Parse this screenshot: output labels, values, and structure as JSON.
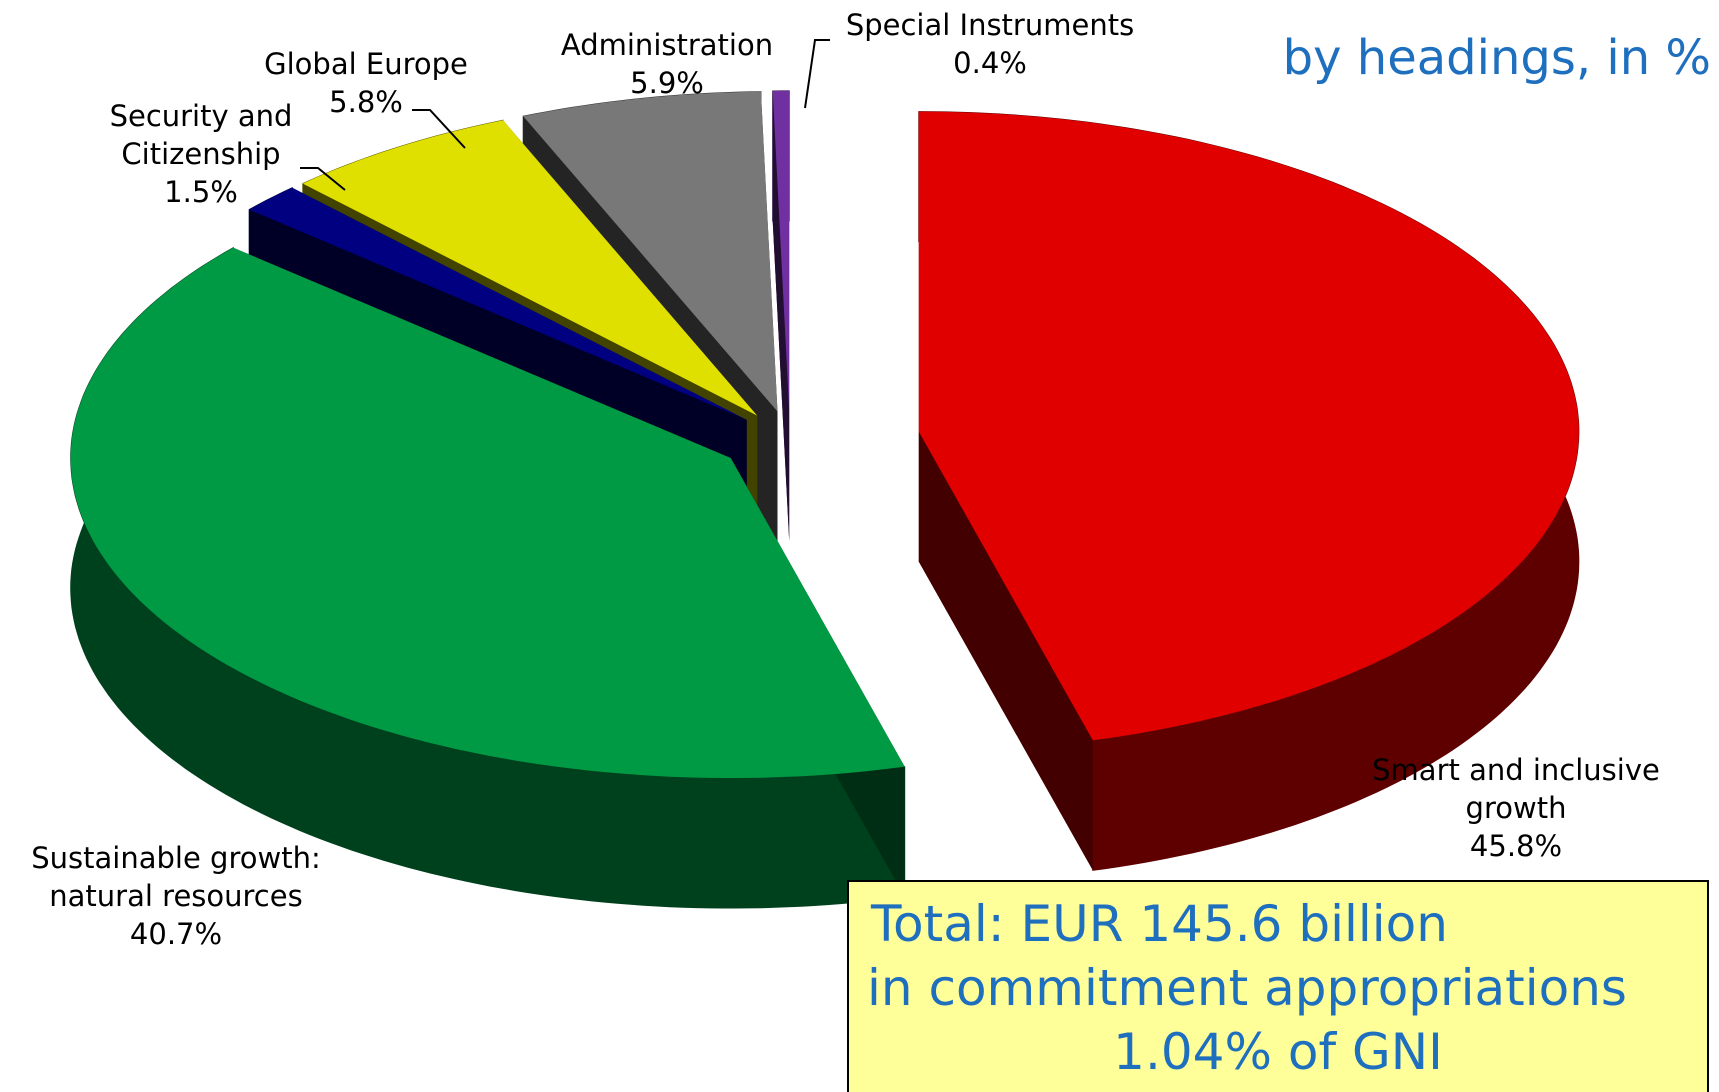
{
  "chart_data": {
    "type": "pie",
    "title": "by headings, in %",
    "categories": [
      "Smart and inclusive growth",
      "Sustainable growth: natural resources",
      "Security and Citizenship",
      "Global Europe",
      "Administration",
      "Special Instruments"
    ],
    "values": [
      45.8,
      40.7,
      1.5,
      5.8,
      5.9,
      0.4
    ],
    "value_labels": [
      "45.8%",
      "40.7%",
      "1.5%",
      "5.8%",
      "5.9%",
      "0.4%"
    ],
    "colors": [
      "#e00000",
      "#009a44",
      "#000080",
      "#e0e000",
      "#787878",
      "#7030a0"
    ],
    "annotation": [
      "Total: EUR 145.6 billion",
      "in commitment appropriations",
      "1.04% of GNI"
    ]
  }
}
